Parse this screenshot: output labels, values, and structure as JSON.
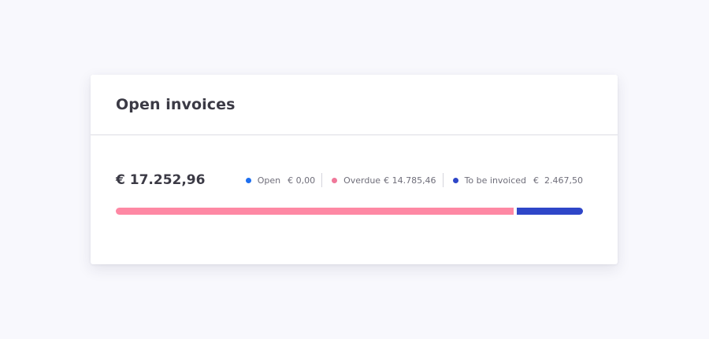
{
  "card": {
    "title": "Open invoices",
    "total": "€ 17.252,96"
  },
  "legend": [
    {
      "label": "Open",
      "value": "€ 0,00",
      "color": "#1e6ff0"
    },
    {
      "label": "Overdue",
      "value": "€ 14.785,46",
      "color": "#f0789a"
    },
    {
      "label": "To be invoiced",
      "value": "€  2.467,50",
      "color": "#2e46c8"
    }
  ],
  "progress": {
    "open_fraction": 0.0,
    "overdue_fraction": 0.857,
    "to_be_invoiced_fraction": 0.143
  },
  "colors": {
    "overdue_bar": "#fe88a4",
    "invoiced_bar": "#2e46c8"
  }
}
